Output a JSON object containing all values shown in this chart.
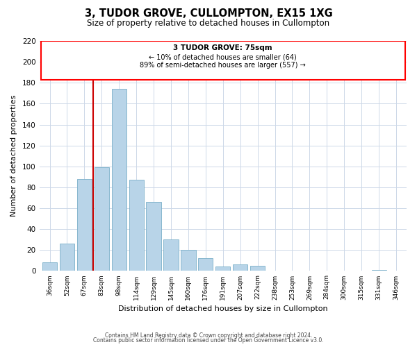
{
  "title": "3, TUDOR GROVE, CULLOMPTON, EX15 1XG",
  "subtitle": "Size of property relative to detached houses in Cullompton",
  "xlabel": "Distribution of detached houses by size in Cullompton",
  "ylabel": "Number of detached properties",
  "bar_labels": [
    "36sqm",
    "52sqm",
    "67sqm",
    "83sqm",
    "98sqm",
    "114sqm",
    "129sqm",
    "145sqm",
    "160sqm",
    "176sqm",
    "191sqm",
    "207sqm",
    "222sqm",
    "238sqm",
    "253sqm",
    "269sqm",
    "284sqm",
    "300sqm",
    "315sqm",
    "331sqm",
    "346sqm"
  ],
  "bar_values": [
    8,
    26,
    88,
    99,
    174,
    87,
    66,
    30,
    20,
    12,
    4,
    6,
    5,
    0,
    0,
    0,
    0,
    0,
    0,
    1,
    0
  ],
  "bar_color": "#b8d4e8",
  "bar_edge_color": "#7aafc8",
  "property_line_label": "3 TUDOR GROVE: 75sqm",
  "annotation_line1": "← 10% of detached houses are smaller (64)",
  "annotation_line2": "89% of semi-detached houses are larger (557) →",
  "ylim": [
    0,
    220
  ],
  "yticks": [
    0,
    20,
    40,
    60,
    80,
    100,
    120,
    140,
    160,
    180,
    200,
    220
  ],
  "footer1": "Contains HM Land Registry data © Crown copyright and database right 2024.",
  "footer2": "Contains public sector information licensed under the Open Government Licence v3.0.",
  "background_color": "#ffffff",
  "grid_color": "#cdd8e8"
}
